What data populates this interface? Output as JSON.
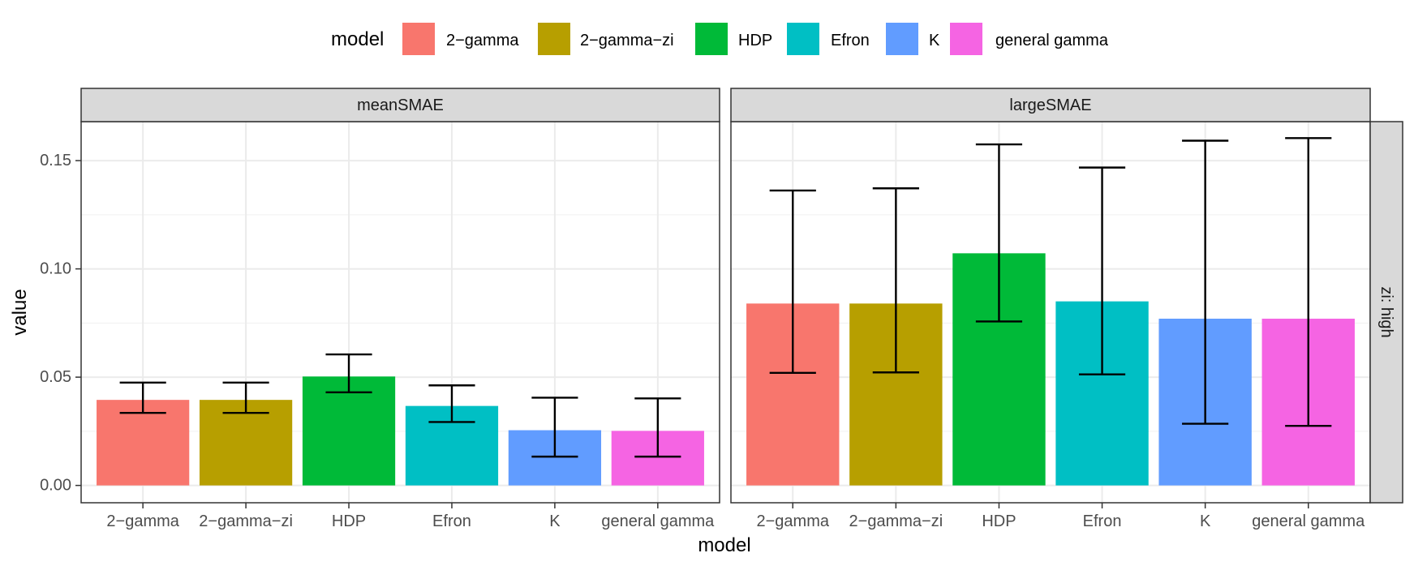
{
  "chart_data": {
    "type": "bar",
    "title": "",
    "xlabel": "model",
    "ylabel": "value",
    "ylim": [
      -0.008,
      0.168
    ],
    "yticks": [
      0.0,
      0.05,
      0.1,
      0.15
    ],
    "ytick_labels": [
      "0.00",
      "0.05",
      "0.10",
      "0.15"
    ],
    "grid": true,
    "legend": {
      "title": "model",
      "position": "top",
      "entries": [
        "2−gamma",
        "2−gamma−zi",
        "HDP",
        "Efron",
        "K",
        "general gamma"
      ]
    },
    "categories": [
      "2−gamma",
      "2−gamma−zi",
      "HDP",
      "Efron",
      "K",
      "general gamma"
    ],
    "colors": [
      "#F8766D",
      "#B79F00",
      "#00BA38",
      "#00BFC4",
      "#619CFF",
      "#F564E3"
    ],
    "row_strip": "zi: high",
    "panels": [
      {
        "name": "meanSMAE",
        "values": [
          0.0395,
          0.0395,
          0.0503,
          0.0367,
          0.0255,
          0.0252
        ],
        "error_low": [
          0.0335,
          0.0335,
          0.043,
          0.0293,
          0.0133,
          0.0133
        ],
        "error_high": [
          0.0475,
          0.0475,
          0.0605,
          0.0462,
          0.0405,
          0.0402
        ]
      },
      {
        "name": "largeSMAE",
        "values": [
          0.084,
          0.084,
          0.1072,
          0.085,
          0.077,
          0.077
        ],
        "error_low": [
          0.052,
          0.0522,
          0.0757,
          0.0513,
          0.0285,
          0.0275
        ],
        "error_high": [
          0.1362,
          0.1372,
          0.1575,
          0.1468,
          0.1592,
          0.1604
        ]
      }
    ]
  }
}
